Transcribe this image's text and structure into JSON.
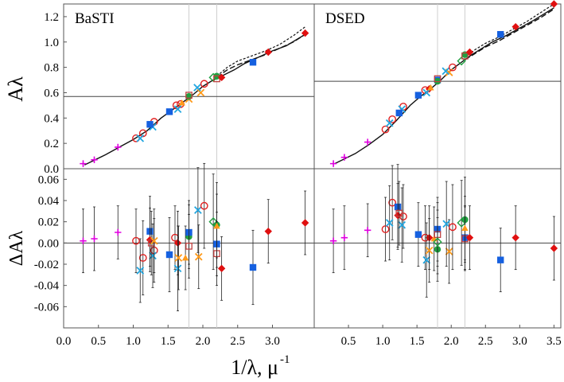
{
  "figure": {
    "xlabel_main": "1/λ, μ",
    "xlabel_sup": "-1",
    "ylabel_top": "Aλ",
    "ylabel_bottom": "ΔAλ"
  },
  "chart_data": {
    "type": "scatter",
    "x_axis": {
      "range": [
        0.0,
        3.6
      ],
      "ticks_left": [
        "0.0",
        "0.5",
        "1.0",
        "1.5",
        "2.0",
        "2.5",
        "3.0"
      ],
      "ticks_right": [
        "0.5",
        "1.0",
        "1.5",
        "2.0",
        "2.5",
        "3.0",
        "3.5"
      ]
    },
    "top_y_axis": {
      "range": [
        0.0,
        1.3
      ],
      "ticks": [
        "0.0",
        "0.2",
        "0.4",
        "0.6",
        "0.8",
        "1.0",
        "1.2"
      ]
    },
    "bottom_y_axis": {
      "range": [
        -0.08,
        0.07
      ],
      "ticks": [
        "-0.06",
        "-0.04",
        "-0.02",
        "0.00",
        "0.02",
        "0.04",
        "0.06"
      ]
    },
    "series_styles": [
      {
        "marker": "plus",
        "color": "#e000e0"
      },
      {
        "marker": "circle-open",
        "color": "#e02020"
      },
      {
        "marker": "cross",
        "color": "#22a6e0"
      },
      {
        "marker": "square",
        "color": "#1560e0"
      },
      {
        "marker": "square-open",
        "color": "#c04040"
      },
      {
        "marker": "square-filled",
        "color": "#1560e0"
      },
      {
        "marker": "x",
        "color": "#ff9a1a"
      },
      {
        "marker": "triangle",
        "color": "#ff9a1a"
      },
      {
        "marker": "diamond-open",
        "color": "#20a040"
      },
      {
        "marker": "circle-filled",
        "color": "#20a040"
      },
      {
        "marker": "diamond",
        "color": "#e01010"
      }
    ],
    "panels": [
      {
        "title": "BaSTI",
        "hline_top": 0.57,
        "vlines": [
          1.8,
          2.2
        ],
        "curve_solid": [
          [
            0.3,
            0.03
          ],
          [
            0.45,
            0.07
          ],
          [
            0.6,
            0.11
          ],
          [
            0.8,
            0.17
          ],
          [
            1.0,
            0.23
          ],
          [
            1.2,
            0.3
          ],
          [
            1.4,
            0.4
          ],
          [
            1.55,
            0.46
          ],
          [
            1.7,
            0.52
          ],
          [
            1.85,
            0.58
          ],
          [
            2.0,
            0.65
          ],
          [
            2.15,
            0.7
          ],
          [
            2.3,
            0.74
          ],
          [
            2.45,
            0.78
          ],
          [
            2.6,
            0.83
          ],
          [
            2.8,
            0.88
          ],
          [
            3.0,
            0.93
          ],
          [
            3.2,
            0.97
          ],
          [
            3.47,
            1.06
          ]
        ],
        "curve_dash1": [
          [
            2.2,
            0.73
          ],
          [
            2.35,
            0.8
          ],
          [
            2.5,
            0.85
          ],
          [
            2.7,
            0.89
          ],
          [
            2.9,
            0.93
          ],
          [
            3.1,
            0.98
          ],
          [
            3.3,
            1.05
          ],
          [
            3.47,
            1.12
          ]
        ],
        "curve_dash2": [
          [
            2.2,
            0.72
          ],
          [
            2.35,
            0.78
          ],
          [
            2.5,
            0.82
          ],
          [
            2.7,
            0.86
          ],
          [
            2.9,
            0.9
          ],
          [
            3.1,
            0.95
          ],
          [
            3.3,
            1.0
          ],
          [
            3.47,
            1.06
          ]
        ],
        "top_points": [
          {
            "m": 0,
            "x": 0.28,
            "y": 0.04
          },
          {
            "m": 0,
            "x": 0.44,
            "y": 0.07
          },
          {
            "m": 0,
            "x": 0.78,
            "y": 0.17
          },
          {
            "m": 1,
            "x": 1.04,
            "y": 0.24
          },
          {
            "m": 1,
            "x": 1.14,
            "y": 0.28
          },
          {
            "m": 1,
            "x": 1.3,
            "y": 0.37
          },
          {
            "m": 2,
            "x": 1.1,
            "y": 0.24
          },
          {
            "m": 2,
            "x": 1.28,
            "y": 0.33
          },
          {
            "m": 5,
            "x": 1.24,
            "y": 0.35
          },
          {
            "m": 5,
            "x": 1.52,
            "y": 0.45
          },
          {
            "m": 1,
            "x": 1.62,
            "y": 0.5
          },
          {
            "m": 1,
            "x": 1.68,
            "y": 0.51
          },
          {
            "m": 2,
            "x": 1.64,
            "y": 0.47
          },
          {
            "m": 7,
            "x": 1.7,
            "y": 0.52
          },
          {
            "m": 6,
            "x": 1.8,
            "y": 0.55
          },
          {
            "m": 9,
            "x": 1.8,
            "y": 0.57
          },
          {
            "m": 4,
            "x": 1.8,
            "y": 0.58
          },
          {
            "m": 6,
            "x": 1.97,
            "y": 0.6
          },
          {
            "m": 2,
            "x": 1.92,
            "y": 0.64
          },
          {
            "m": 1,
            "x": 2.02,
            "y": 0.67
          },
          {
            "m": 8,
            "x": 2.15,
            "y": 0.72
          },
          {
            "m": 9,
            "x": 2.2,
            "y": 0.73
          },
          {
            "m": 4,
            "x": 2.2,
            "y": 0.71
          },
          {
            "m": 10,
            "x": 2.27,
            "y": 0.72
          },
          {
            "m": 5,
            "x": 2.72,
            "y": 0.84
          },
          {
            "m": 10,
            "x": 2.94,
            "y": 0.92
          },
          {
            "m": 10,
            "x": 3.47,
            "y": 1.07
          }
        ],
        "bottom_points": [
          {
            "m": 0,
            "x": 0.28,
            "y": 0.002,
            "e": 0.03
          },
          {
            "m": 0,
            "x": 0.44,
            "y": 0.004,
            "e": 0.03
          },
          {
            "m": 0,
            "x": 0.78,
            "y": 0.01,
            "e": 0.025
          },
          {
            "m": 1,
            "x": 1.04,
            "y": 0.002,
            "e": 0.03
          },
          {
            "m": 1,
            "x": 1.14,
            "y": -0.014,
            "e": 0.035
          },
          {
            "m": 1,
            "x": 1.3,
            "y": -0.007,
            "e": 0.03
          },
          {
            "m": 2,
            "x": 1.1,
            "y": -0.026,
            "e": 0.03
          },
          {
            "m": 2,
            "x": 1.28,
            "y": -0.012,
            "e": 0.03
          },
          {
            "m": 5,
            "x": 1.24,
            "y": 0.011,
            "e": 0.033
          },
          {
            "m": 10,
            "x": 1.24,
            "y": 0.003,
            "e": 0.03
          },
          {
            "m": 4,
            "x": 1.26,
            "y": 0.0,
            "e": 0.03
          },
          {
            "m": 6,
            "x": 1.3,
            "y": 0.002,
            "e": 0.03
          },
          {
            "m": 5,
            "x": 1.52,
            "y": -0.011,
            "e": 0.035
          },
          {
            "m": 1,
            "x": 1.6,
            "y": 0.005,
            "e": 0.03
          },
          {
            "m": 10,
            "x": 1.64,
            "y": 0.0,
            "e": 0.03
          },
          {
            "m": 2,
            "x": 1.64,
            "y": -0.024,
            "e": 0.04
          },
          {
            "m": 6,
            "x": 1.65,
            "y": -0.014,
            "e": 0.03
          },
          {
            "m": 7,
            "x": 1.75,
            "y": -0.014,
            "e": 0.03
          },
          {
            "m": 9,
            "x": 1.8,
            "y": 0.006,
            "e": 0.03
          },
          {
            "m": 5,
            "x": 1.8,
            "y": 0.01,
            "e": 0.03
          },
          {
            "m": 4,
            "x": 1.8,
            "y": -0.003,
            "e": 0.03
          },
          {
            "m": 6,
            "x": 1.94,
            "y": -0.013,
            "e": 0.03
          },
          {
            "m": 2,
            "x": 1.93,
            "y": 0.031,
            "e": 0.04
          },
          {
            "m": 1,
            "x": 2.02,
            "y": 0.035,
            "e": 0.04
          },
          {
            "m": 8,
            "x": 2.15,
            "y": 0.02,
            "e": 0.045
          },
          {
            "m": 9,
            "x": 2.2,
            "y": 0.017,
            "e": 0.04
          },
          {
            "m": 5,
            "x": 2.2,
            "y": -0.001,
            "e": 0.03
          },
          {
            "m": 4,
            "x": 2.2,
            "y": -0.01,
            "e": 0.03
          },
          {
            "m": 7,
            "x": 2.2,
            "y": 0.016,
            "e": 0.03
          },
          {
            "m": 10,
            "x": 2.27,
            "y": -0.024,
            "e": 0.03
          },
          {
            "m": 5,
            "x": 2.72,
            "y": -0.023,
            "e": 0.035
          },
          {
            "m": 10,
            "x": 2.94,
            "y": 0.011,
            "e": 0.03
          },
          {
            "m": 10,
            "x": 3.47,
            "y": 0.019,
            "e": 0.03
          }
        ]
      },
      {
        "title": "DSED",
        "hline_top": 0.69,
        "vlines": [
          1.8,
          2.2
        ],
        "curve_solid": [
          [
            0.3,
            0.04
          ],
          [
            0.45,
            0.08
          ],
          [
            0.6,
            0.12
          ],
          [
            0.8,
            0.19
          ],
          [
            1.0,
            0.27
          ],
          [
            1.2,
            0.38
          ],
          [
            1.4,
            0.5
          ],
          [
            1.55,
            0.57
          ],
          [
            1.7,
            0.63
          ],
          [
            1.85,
            0.7
          ],
          [
            2.0,
            0.78
          ],
          [
            2.15,
            0.84
          ],
          [
            2.3,
            0.9
          ],
          [
            2.45,
            0.95
          ],
          [
            2.6,
            1.0
          ],
          [
            2.8,
            1.05
          ],
          [
            3.0,
            1.11
          ],
          [
            3.2,
            1.17
          ],
          [
            3.5,
            1.27
          ]
        ],
        "curve_dash1": [
          [
            2.2,
            0.88
          ],
          [
            2.35,
            0.94
          ],
          [
            2.5,
            0.99
          ],
          [
            2.7,
            1.04
          ],
          [
            2.9,
            1.1
          ],
          [
            3.1,
            1.16
          ],
          [
            3.3,
            1.23
          ],
          [
            3.5,
            1.3
          ]
        ],
        "curve_dash2": [
          [
            2.2,
            0.86
          ],
          [
            2.35,
            0.91
          ],
          [
            2.5,
            0.96
          ],
          [
            2.7,
            1.01
          ],
          [
            2.9,
            1.07
          ],
          [
            3.1,
            1.13
          ],
          [
            3.3,
            1.19
          ],
          [
            3.5,
            1.26
          ]
        ],
        "top_points": [
          {
            "m": 0,
            "x": 0.28,
            "y": 0.04
          },
          {
            "m": 0,
            "x": 0.44,
            "y": 0.09
          },
          {
            "m": 0,
            "x": 0.78,
            "y": 0.21
          },
          {
            "m": 1,
            "x": 1.04,
            "y": 0.31
          },
          {
            "m": 1,
            "x": 1.14,
            "y": 0.39
          },
          {
            "m": 1,
            "x": 1.3,
            "y": 0.49
          },
          {
            "m": 2,
            "x": 1.1,
            "y": 0.36
          },
          {
            "m": 2,
            "x": 1.28,
            "y": 0.47
          },
          {
            "m": 5,
            "x": 1.24,
            "y": 0.44
          },
          {
            "m": 5,
            "x": 1.52,
            "y": 0.58
          },
          {
            "m": 1,
            "x": 1.62,
            "y": 0.62
          },
          {
            "m": 10,
            "x": 1.68,
            "y": 0.63
          },
          {
            "m": 2,
            "x": 1.64,
            "y": 0.6
          },
          {
            "m": 7,
            "x": 1.7,
            "y": 0.64
          },
          {
            "m": 5,
            "x": 1.8,
            "y": 0.7
          },
          {
            "m": 9,
            "x": 1.8,
            "y": 0.69
          },
          {
            "m": 4,
            "x": 1.8,
            "y": 0.71
          },
          {
            "m": 6,
            "x": 1.97,
            "y": 0.76
          },
          {
            "m": 2,
            "x": 1.92,
            "y": 0.77
          },
          {
            "m": 1,
            "x": 2.02,
            "y": 0.8
          },
          {
            "m": 8,
            "x": 2.15,
            "y": 0.85
          },
          {
            "m": 9,
            "x": 2.2,
            "y": 0.9
          },
          {
            "m": 4,
            "x": 2.2,
            "y": 0.89
          },
          {
            "m": 10,
            "x": 2.27,
            "y": 0.92
          },
          {
            "m": 5,
            "x": 2.72,
            "y": 1.06
          },
          {
            "m": 10,
            "x": 2.94,
            "y": 1.12
          },
          {
            "m": 10,
            "x": 3.5,
            "y": 1.3
          }
        ],
        "bottom_points": [
          {
            "m": 0,
            "x": 0.28,
            "y": 0.002,
            "e": 0.03
          },
          {
            "m": 0,
            "x": 0.44,
            "y": 0.005,
            "e": 0.03
          },
          {
            "m": 0,
            "x": 0.78,
            "y": 0.012,
            "e": 0.025
          },
          {
            "m": 1,
            "x": 1.04,
            "y": 0.013,
            "e": 0.03
          },
          {
            "m": 1,
            "x": 1.14,
            "y": 0.038,
            "e": 0.035
          },
          {
            "m": 1,
            "x": 1.3,
            "y": 0.025,
            "e": 0.03
          },
          {
            "m": 2,
            "x": 1.1,
            "y": 0.019,
            "e": 0.035
          },
          {
            "m": 2,
            "x": 1.28,
            "y": 0.017,
            "e": 0.035
          },
          {
            "m": 5,
            "x": 1.22,
            "y": 0.034,
            "e": 0.04
          },
          {
            "m": 10,
            "x": 1.22,
            "y": 0.026,
            "e": 0.03
          },
          {
            "m": 4,
            "x": 1.24,
            "y": 0.028,
            "e": 0.03
          },
          {
            "m": 5,
            "x": 1.52,
            "y": 0.008,
            "e": 0.03
          },
          {
            "m": 1,
            "x": 1.62,
            "y": 0.005,
            "e": 0.03
          },
          {
            "m": 10,
            "x": 1.68,
            "y": 0.005,
            "e": 0.03
          },
          {
            "m": 2,
            "x": 1.64,
            "y": -0.016,
            "e": 0.035
          },
          {
            "m": 6,
            "x": 1.68,
            "y": -0.007,
            "e": 0.03
          },
          {
            "m": 7,
            "x": 1.75,
            "y": 0.004,
            "e": 0.03
          },
          {
            "m": 9,
            "x": 1.8,
            "y": -0.006,
            "e": 0.03
          },
          {
            "m": 5,
            "x": 1.8,
            "y": 0.013,
            "e": 0.03
          },
          {
            "m": 4,
            "x": 1.8,
            "y": 0.008,
            "e": 0.03
          },
          {
            "m": 8,
            "x": 1.8,
            "y": 0.001,
            "e": 0.03
          },
          {
            "m": 6,
            "x": 1.97,
            "y": -0.008,
            "e": 0.03
          },
          {
            "m": 2,
            "x": 1.93,
            "y": 0.018,
            "e": 0.04
          },
          {
            "m": 1,
            "x": 2.02,
            "y": 0.015,
            "e": 0.04
          },
          {
            "m": 8,
            "x": 2.15,
            "y": 0.019,
            "e": 0.04
          },
          {
            "m": 9,
            "x": 2.2,
            "y": 0.022,
            "e": 0.04
          },
          {
            "m": 5,
            "x": 2.2,
            "y": 0.005,
            "e": 0.03
          },
          {
            "m": 4,
            "x": 2.2,
            "y": 0.004,
            "e": 0.03
          },
          {
            "m": 7,
            "x": 2.2,
            "y": 0.014,
            "e": 0.03
          },
          {
            "m": 10,
            "x": 2.27,
            "y": 0.005,
            "e": 0.03
          },
          {
            "m": 5,
            "x": 2.72,
            "y": -0.016,
            "e": 0.03
          },
          {
            "m": 10,
            "x": 2.94,
            "y": 0.005,
            "e": 0.03
          },
          {
            "m": 10,
            "x": 3.5,
            "y": -0.005,
            "e": 0.03
          }
        ]
      }
    ]
  }
}
